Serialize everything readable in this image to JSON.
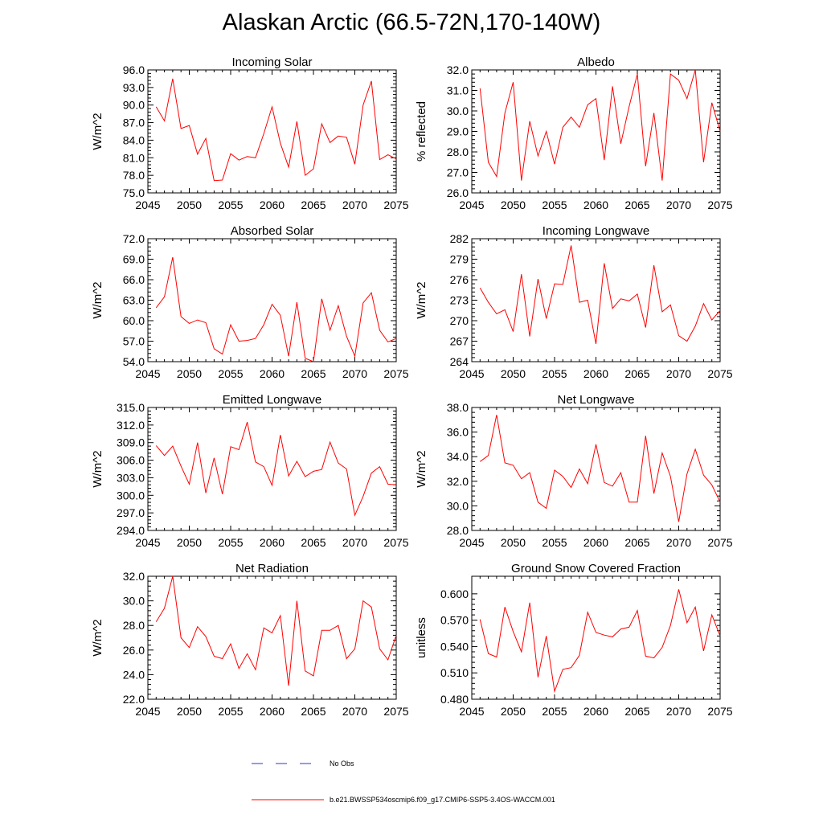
{
  "title": "Alaskan Arctic (66.5-72N,170-140W)",
  "colors": {
    "model": "#ff0000",
    "obs": "#3333cc",
    "axis": "#000000"
  },
  "legend": {
    "obs_label": "No Obs",
    "model_label": "b.e21.BWSSP534oscmip6.f09_g17.CMIP6-SSP5-3.4OS-WACCM.001"
  },
  "chart_data": [
    {
      "type": "line",
      "title": "Incoming Solar",
      "ylabel": "W/m^2",
      "xlim": [
        2045,
        2075
      ],
      "ylim": [
        75,
        96
      ],
      "xticks": [
        2045,
        2050,
        2055,
        2060,
        2065,
        2070,
        2075
      ],
      "xtick_labels": [
        "2045",
        "2050",
        "2055",
        "2060",
        "2065",
        "2070",
        "2075"
      ],
      "yticks": [
        75,
        78,
        81,
        84,
        87,
        90,
        93,
        96
      ],
      "ytick_labels": [
        "75.0",
        "78.0",
        "81.0",
        "84.0",
        "87.0",
        "90.0",
        "93.0",
        "96.0"
      ],
      "x": [
        2046,
        2047,
        2048,
        2049,
        2050,
        2051,
        2052,
        2053,
        2054,
        2055,
        2056,
        2057,
        2058,
        2059,
        2060,
        2061,
        2062,
        2063,
        2064,
        2065,
        2066,
        2067,
        2068,
        2069,
        2070,
        2071,
        2072,
        2073,
        2074,
        2075
      ],
      "values": [
        89.7,
        87.3,
        94.5,
        86.0,
        86.5,
        81.6,
        84.3,
        77.1,
        77.2,
        81.7,
        80.6,
        81.2,
        81.0,
        85.1,
        89.7,
        83.5,
        79.4,
        87.2,
        78.0,
        79.1,
        86.8,
        83.6,
        84.7,
        84.5,
        79.9,
        90.0,
        94.1,
        80.7,
        81.5,
        80.8
      ],
      "series": [
        {
          "name": "b.e21.BWSSP534oscmip6.f09_g17.CMIP6-SSP5-3.4OS-WACCM.001"
        }
      ]
    },
    {
      "type": "line",
      "title": "Albedo",
      "ylabel": "% reflected",
      "xlim": [
        2045,
        2075
      ],
      "ylim": [
        26,
        32
      ],
      "xticks": [
        2045,
        2050,
        2055,
        2060,
        2065,
        2070,
        2075
      ],
      "xtick_labels": [
        "2045",
        "2050",
        "2055",
        "2060",
        "2065",
        "2070",
        "2075"
      ],
      "yticks": [
        26,
        27,
        28,
        29,
        30,
        31,
        32
      ],
      "ytick_labels": [
        "26.0",
        "27.0",
        "28.0",
        "29.0",
        "30.0",
        "31.0",
        "32.0"
      ],
      "x": [
        2046,
        2047,
        2048,
        2049,
        2050,
        2051,
        2052,
        2053,
        2054,
        2055,
        2056,
        2057,
        2058,
        2059,
        2060,
        2061,
        2062,
        2063,
        2064,
        2065,
        2066,
        2067,
        2068,
        2069,
        2070,
        2071,
        2072,
        2073,
        2074,
        2075
      ],
      "values": [
        31.1,
        27.5,
        26.8,
        29.9,
        31.4,
        26.6,
        29.5,
        27.8,
        29.0,
        27.4,
        29.2,
        29.7,
        29.2,
        30.3,
        30.6,
        27.6,
        31.2,
        28.4,
        30.2,
        31.8,
        27.3,
        29.9,
        26.6,
        31.8,
        31.5,
        30.6,
        32.0,
        27.5,
        30.4,
        29.0
      ],
      "series": [
        {
          "name": "b.e21.BWSSP534oscmip6.f09_g17.CMIP6-SSP5-3.4OS-WACCM.001"
        }
      ]
    },
    {
      "type": "line",
      "title": "Absorbed Solar",
      "ylabel": "W/m^2",
      "xlim": [
        2045,
        2075
      ],
      "ylim": [
        54,
        72
      ],
      "xticks": [
        2045,
        2050,
        2055,
        2060,
        2065,
        2070,
        2075
      ],
      "xtick_labels": [
        "2045",
        "2050",
        "2055",
        "2060",
        "2065",
        "2070",
        "2075"
      ],
      "yticks": [
        54,
        57,
        60,
        63,
        66,
        69,
        72
      ],
      "ytick_labels": [
        "54.0",
        "57.0",
        "60.0",
        "63.0",
        "66.0",
        "69.0",
        "72.0"
      ],
      "x": [
        2046,
        2047,
        2048,
        2049,
        2050,
        2051,
        2052,
        2053,
        2054,
        2055,
        2056,
        2057,
        2058,
        2059,
        2060,
        2061,
        2062,
        2063,
        2064,
        2065,
        2066,
        2067,
        2068,
        2069,
        2070,
        2071,
        2072,
        2073,
        2074,
        2075
      ],
      "values": [
        61.9,
        63.5,
        69.3,
        60.6,
        59.6,
        60.1,
        59.7,
        55.9,
        55.1,
        59.4,
        57.0,
        57.1,
        57.4,
        59.4,
        62.4,
        60.8,
        54.8,
        62.7,
        54.5,
        54.0,
        63.2,
        58.6,
        62.2,
        57.7,
        54.8,
        62.6,
        64.1,
        58.6,
        56.9,
        57.4
      ],
      "series": [
        {
          "name": "b.e21.BWSSP534oscmip6.f09_g17.CMIP6-SSP5-3.4OS-WACCM.001"
        }
      ]
    },
    {
      "type": "line",
      "title": "Incoming Longwave",
      "ylabel": "W/m^2",
      "xlim": [
        2045,
        2075
      ],
      "ylim": [
        264,
        282
      ],
      "xticks": [
        2045,
        2050,
        2055,
        2060,
        2065,
        2070,
        2075
      ],
      "xtick_labels": [
        "2045",
        "2050",
        "2055",
        "2060",
        "2065",
        "2070",
        "2075"
      ],
      "yticks": [
        264,
        267,
        270,
        273,
        276,
        279,
        282
      ],
      "ytick_labels": [
        "264",
        "267",
        "270",
        "273",
        "276",
        "279",
        "282"
      ],
      "x": [
        2046,
        2047,
        2048,
        2049,
        2050,
        2051,
        2052,
        2053,
        2054,
        2055,
        2056,
        2057,
        2058,
        2059,
        2060,
        2061,
        2062,
        2063,
        2064,
        2065,
        2066,
        2067,
        2068,
        2069,
        2070,
        2071,
        2072,
        2073,
        2074,
        2075
      ],
      "values": [
        274.8,
        272.7,
        271.0,
        271.6,
        268.4,
        276.8,
        267.7,
        276.1,
        270.3,
        275.4,
        275.3,
        281.0,
        272.7,
        273.0,
        266.6,
        278.4,
        271.8,
        273.2,
        272.9,
        273.9,
        269.0,
        278.1,
        271.3,
        272.3,
        267.8,
        267.0,
        269.2,
        272.5,
        270.1,
        271.5
      ],
      "series": [
        {
          "name": "b.e21.BWSSP534oscmip6.f09_g17.CMIP6-SSP5-3.4OS-WACCM.001"
        }
      ]
    },
    {
      "type": "line",
      "title": "Emitted Longwave",
      "ylabel": "W/m^2",
      "xlim": [
        2045,
        2075
      ],
      "ylim": [
        294,
        315
      ],
      "xticks": [
        2045,
        2050,
        2055,
        2060,
        2065,
        2070,
        2075
      ],
      "xtick_labels": [
        "2045",
        "2050",
        "2055",
        "2060",
        "2065",
        "2070",
        "2075"
      ],
      "yticks": [
        294,
        297,
        300,
        303,
        306,
        309,
        312,
        315
      ],
      "ytick_labels": [
        "294.0",
        "297.0",
        "300.0",
        "303.0",
        "306.0",
        "309.0",
        "312.0",
        "315.0"
      ],
      "x": [
        2046,
        2047,
        2048,
        2049,
        2050,
        2051,
        2052,
        2053,
        2054,
        2055,
        2056,
        2057,
        2058,
        2059,
        2060,
        2061,
        2062,
        2063,
        2064,
        2065,
        2066,
        2067,
        2068,
        2069,
        2070,
        2071,
        2072,
        2073,
        2074,
        2075
      ],
      "values": [
        308.5,
        306.8,
        308.4,
        305.0,
        301.9,
        309.0,
        300.4,
        306.4,
        300.2,
        308.3,
        307.8,
        312.5,
        305.7,
        304.9,
        301.7,
        310.3,
        303.3,
        305.8,
        303.2,
        304.1,
        304.4,
        309.1,
        305.5,
        304.5,
        296.6,
        299.8,
        303.8,
        304.9,
        301.9,
        301.8
      ],
      "series": [
        {
          "name": "b.e21.BWSSP534oscmip6.f09_g17.CMIP6-SSP5-3.4OS-WACCM.001"
        }
      ]
    },
    {
      "type": "line",
      "title": "Net Longwave",
      "ylabel": "W/m^2",
      "xlim": [
        2045,
        2075
      ],
      "ylim": [
        28,
        38
      ],
      "xticks": [
        2045,
        2050,
        2055,
        2060,
        2065,
        2070,
        2075
      ],
      "xtick_labels": [
        "2045",
        "2050",
        "2055",
        "2060",
        "2065",
        "2070",
        "2075"
      ],
      "yticks": [
        28,
        30,
        32,
        34,
        36,
        38
      ],
      "ytick_labels": [
        "28.0",
        "30.0",
        "32.0",
        "34.0",
        "36.0",
        "38.0"
      ],
      "x": [
        2046,
        2047,
        2048,
        2049,
        2050,
        2051,
        2052,
        2053,
        2054,
        2055,
        2056,
        2057,
        2058,
        2059,
        2060,
        2061,
        2062,
        2063,
        2064,
        2065,
        2066,
        2067,
        2068,
        2069,
        2070,
        2071,
        2072,
        2073,
        2074,
        2075
      ],
      "values": [
        33.6,
        34.1,
        37.4,
        33.5,
        33.3,
        32.2,
        32.7,
        30.3,
        29.8,
        32.9,
        32.4,
        31.5,
        33.0,
        31.8,
        35.0,
        31.9,
        31.6,
        32.7,
        30.3,
        30.3,
        35.7,
        31.0,
        34.3,
        32.4,
        28.7,
        32.6,
        34.6,
        32.5,
        31.7,
        30.3
      ],
      "series": [
        {
          "name": "b.e21.BWSSP534oscmip6.f09_g17.CMIP6-SSP5-3.4OS-WACCM.001"
        }
      ]
    },
    {
      "type": "line",
      "title": "Net Radiation",
      "ylabel": "W/m^2",
      "xlim": [
        2045,
        2075
      ],
      "ylim": [
        22,
        32
      ],
      "xticks": [
        2045,
        2050,
        2055,
        2060,
        2065,
        2070,
        2075
      ],
      "xtick_labels": [
        "2045",
        "2050",
        "2055",
        "2060",
        "2065",
        "2070",
        "2075"
      ],
      "yticks": [
        22,
        24,
        26,
        28,
        30,
        32
      ],
      "ytick_labels": [
        "22.0",
        "24.0",
        "26.0",
        "28.0",
        "30.0",
        "32.0"
      ],
      "x": [
        2046,
        2047,
        2048,
        2049,
        2050,
        2051,
        2052,
        2053,
        2054,
        2055,
        2056,
        2057,
        2058,
        2059,
        2060,
        2061,
        2062,
        2063,
        2064,
        2065,
        2066,
        2067,
        2068,
        2069,
        2070,
        2071,
        2072,
        2073,
        2074,
        2075
      ],
      "values": [
        28.3,
        29.4,
        32.0,
        27.0,
        26.2,
        27.9,
        27.1,
        25.5,
        25.3,
        26.5,
        24.5,
        25.7,
        24.4,
        27.8,
        27.4,
        28.8,
        23.1,
        30.0,
        24.3,
        23.9,
        27.6,
        27.6,
        28.0,
        25.3,
        26.1,
        30.0,
        29.5,
        26.1,
        25.2,
        27.2
      ],
      "series": [
        {
          "name": "b.e21.BWSSP534oscmip6.f09_g17.CMIP6-SSP5-3.4OS-WACCM.001"
        }
      ]
    },
    {
      "type": "line",
      "title": "Ground Snow Covered Fraction",
      "ylabel": "unitless",
      "xlim": [
        2045,
        2075
      ],
      "ylim": [
        0.48,
        0.62
      ],
      "xticks": [
        2045,
        2050,
        2055,
        2060,
        2065,
        2070,
        2075
      ],
      "xtick_labels": [
        "2045",
        "2050",
        "2055",
        "2060",
        "2065",
        "2070",
        "2075"
      ],
      "yticks": [
        0.48,
        0.51,
        0.54,
        0.57,
        0.6
      ],
      "ytick_labels": [
        "0.480",
        "0.510",
        "0.540",
        "0.570",
        "0.600"
      ],
      "x": [
        2046,
        2047,
        2048,
        2049,
        2050,
        2051,
        2052,
        2053,
        2054,
        2055,
        2056,
        2057,
        2058,
        2059,
        2060,
        2061,
        2062,
        2063,
        2064,
        2065,
        2066,
        2067,
        2068,
        2069,
        2070,
        2071,
        2072,
        2073,
        2074,
        2075
      ],
      "values": [
        0.571,
        0.532,
        0.528,
        0.585,
        0.557,
        0.534,
        0.59,
        0.505,
        0.552,
        0.489,
        0.514,
        0.516,
        0.53,
        0.579,
        0.556,
        0.553,
        0.551,
        0.56,
        0.562,
        0.581,
        0.529,
        0.527,
        0.539,
        0.564,
        0.605,
        0.567,
        0.585,
        0.535,
        0.576,
        0.552
      ],
      "series": [
        {
          "name": "b.e21.BWSSP534oscmip6.f09_g17.CMIP6-SSP5-3.4OS-WACCM.001"
        }
      ]
    }
  ]
}
